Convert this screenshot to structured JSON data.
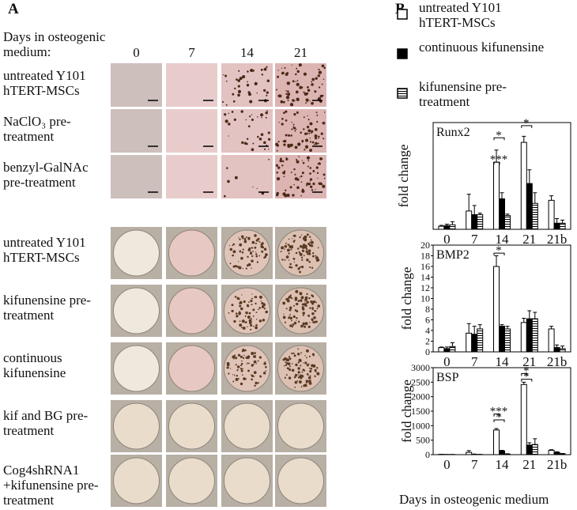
{
  "panel_a": {
    "label": "A",
    "header": "Days in osteogenic medium:",
    "days": [
      "0",
      "7",
      "14",
      "21"
    ],
    "micrograph_rows": [
      "untreated Y101 hTERT-MSCs",
      "NaClO₃ pre-treatment",
      "benzyl-GalNAc pre-treatment"
    ],
    "well_rows": [
      "untreated Y101 hTERT-MSCs",
      "kifunensine pre-treatment",
      "continuous kifunensine",
      "kif and BG pre-treatment",
      "Cog4shRNA1 +kifunensine pre-treatment"
    ]
  },
  "panel_b": {
    "label": "B",
    "xlabel": "Days in osteogenic medium"
  },
  "chart_data": [
    {
      "type": "bar",
      "title": "Runx2",
      "ylabel": "fold change",
      "categories": [
        "0",
        "7",
        "14",
        "21",
        "21b"
      ],
      "ylim": [
        0,
        35
      ],
      "annotations": [
        "*",
        "***",
        "*"
      ],
      "series": [
        {
          "name": "untreated Y101 hTERT-MSCs",
          "color": "#ffffff",
          "values": [
            1,
            6,
            22,
            28.5,
            9.5
          ],
          "errors": [
            0.3,
            5.5,
            4,
            2,
            1.5
          ]
        },
        {
          "name": "continuous kifunensine",
          "color": "#000000",
          "values": [
            1.2,
            4.8,
            10,
            15,
            2
          ],
          "errors": [
            0.5,
            3,
            2,
            4.5,
            1.5
          ]
        },
        {
          "name": "kifunensine pre-treatment",
          "color": "#ffffff",
          "hatch": "horizontal",
          "values": [
            1.5,
            4.8,
            4.5,
            8.5,
            2
          ],
          "errors": [
            1,
            0.5,
            0.5,
            3.5,
            1
          ]
        }
      ]
    },
    {
      "type": "bar",
      "title": "BMP2",
      "ylabel": "fold change",
      "categories": [
        "0",
        "7",
        "14",
        "21",
        "21b"
      ],
      "ylim": [
        0,
        20
      ],
      "yticks": [
        0,
        2,
        4,
        6,
        8,
        10,
        12,
        14,
        16,
        18,
        20
      ],
      "annotations": [
        "*"
      ],
      "series": [
        {
          "color": "#ffffff",
          "values": [
            0.8,
            3.5,
            16,
            5.5,
            4.3
          ],
          "errors": [
            0.1,
            1.8,
            2,
            0.8,
            0.5
          ]
        },
        {
          "color": "#000000",
          "values": [
            0.6,
            3.3,
            4.8,
            6.2,
            0.8
          ],
          "errors": [
            0.3,
            1.5,
            0.3,
            1.5,
            0.5
          ]
        },
        {
          "color": "#ffffff",
          "hatch": "horizontal",
          "values": [
            1,
            4.3,
            4.3,
            6.2,
            0.6
          ],
          "errors": [
            0.7,
            0.8,
            0.5,
            1.2,
            0.5
          ]
        }
      ]
    },
    {
      "type": "bar",
      "title": "BSP",
      "ylabel": "fold change",
      "categories": [
        "0",
        "7",
        "14",
        "21",
        "21b"
      ],
      "ylim": [
        0,
        3000
      ],
      "yticks": [
        0,
        500,
        1000,
        1500,
        2000,
        2500,
        3000
      ],
      "annotations": [
        "*",
        "***",
        "*",
        "*"
      ],
      "series": [
        {
          "color": "#ffffff",
          "values": [
            10,
            80,
            850,
            2420,
            150
          ],
          "errors": [
            5,
            60,
            50,
            80,
            20
          ]
        },
        {
          "color": "#000000",
          "values": [
            5,
            10,
            130,
            330,
            80
          ],
          "errors": [
            2,
            10,
            20,
            80,
            20
          ]
        },
        {
          "color": "#ffffff",
          "hatch": "horizontal",
          "values": [
            5,
            5,
            20,
            350,
            30
          ],
          "errors": [
            2,
            5,
            10,
            200,
            10
          ]
        }
      ]
    }
  ]
}
